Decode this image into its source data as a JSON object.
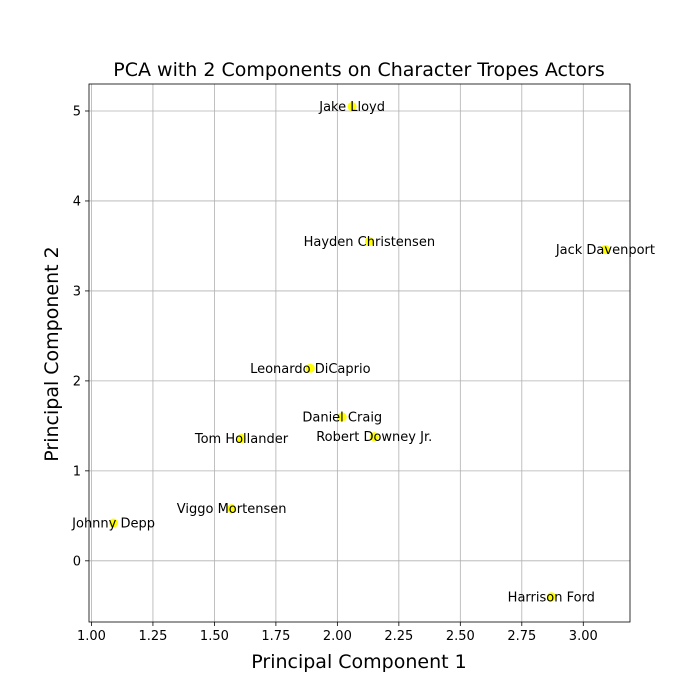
{
  "chart_data": {
    "type": "scatter",
    "title": "PCA with 2 Components on Character Tropes Actors",
    "xlabel": "Principal Component 1",
    "ylabel": "Principal Component 2",
    "xlim": [
      0.99,
      3.19
    ],
    "ylim": [
      -0.68,
      5.3
    ],
    "xticks": [
      1.0,
      1.25,
      1.5,
      1.75,
      2.0,
      2.25,
      2.5,
      2.75,
      3.0
    ],
    "xtick_labels": [
      "1.00",
      "1.25",
      "1.50",
      "1.75",
      "2.00",
      "2.25",
      "2.50",
      "2.75",
      "3.00"
    ],
    "yticks": [
      0,
      1,
      2,
      3,
      4,
      5
    ],
    "ytick_labels": [
      "0",
      "1",
      "2",
      "3",
      "4",
      "5"
    ],
    "grid": true,
    "marker_color": "#ffff00",
    "points": [
      {
        "label": "Jake Lloyd",
        "x": 2.06,
        "y": 5.05
      },
      {
        "label": "Hayden Christensen",
        "x": 2.13,
        "y": 3.55
      },
      {
        "label": "Jack Davenport",
        "x": 3.09,
        "y": 3.46
      },
      {
        "label": "Leonardo DiCaprio",
        "x": 1.89,
        "y": 2.14
      },
      {
        "label": "Daniel Craig",
        "x": 2.02,
        "y": 1.6
      },
      {
        "label": "Robert Downey Jr.",
        "x": 2.15,
        "y": 1.38
      },
      {
        "label": "Tom Hollander",
        "x": 1.61,
        "y": 1.36
      },
      {
        "label": "Viggo Mortensen",
        "x": 1.57,
        "y": 0.58
      },
      {
        "label": "Johnny Depp",
        "x": 1.09,
        "y": 0.42
      },
      {
        "label": "Harrison Ford",
        "x": 2.87,
        "y": -0.4
      }
    ]
  }
}
